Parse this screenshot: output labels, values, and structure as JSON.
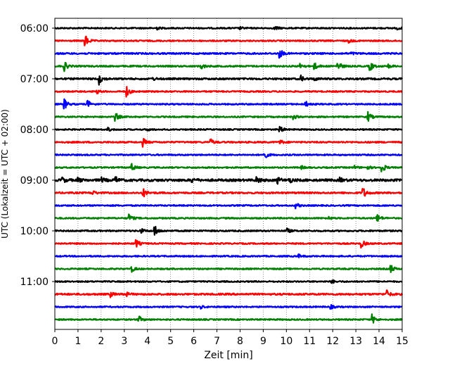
{
  "chart_data": {
    "type": "line",
    "title": "",
    "xlabel": "Zeit  [min]",
    "ylabel": "UTC (Lokalzeit = UTC + 02:00)",
    "xlim": [
      0,
      15
    ],
    "x_ticks": [
      0,
      1,
      2,
      3,
      4,
      5,
      6,
      7,
      8,
      9,
      10,
      11,
      12,
      13,
      14,
      15
    ],
    "x_tick_labels": [
      "0",
      "1",
      "2",
      "3",
      "4",
      "5",
      "6",
      "7",
      "8",
      "9",
      "10",
      "11",
      "12",
      "13",
      "14",
      "15"
    ],
    "vertical_grid": true,
    "y_tick_labels": [
      "06:00",
      "07:00",
      "08:00",
      "09:00",
      "10:00",
      "11:00"
    ],
    "trace_interval_minutes": 15,
    "trace_colors": [
      "#000000",
      "#ff0000",
      "#0000ff",
      "#008000"
    ],
    "series": [
      {
        "start": "06:00",
        "color": "#000000",
        "noise": 1.0,
        "events": [
          {
            "t": 4.4,
            "a": 2.0
          },
          {
            "t": 8.0,
            "a": 1.5
          },
          {
            "t": 9.5,
            "a": 3.0
          },
          {
            "t": 14.8,
            "a": 1.8
          }
        ]
      },
      {
        "start": "06:15",
        "color": "#ff0000",
        "noise": 1.0,
        "events": [
          {
            "t": 1.3,
            "a": 9.0
          },
          {
            "t": 12.7,
            "a": 2.5
          }
        ]
      },
      {
        "start": "06:30",
        "color": "#0000ff",
        "noise": 1.2,
        "events": [
          {
            "t": 9.7,
            "a": 7.0
          },
          {
            "t": 12.8,
            "a": 1.8
          }
        ]
      },
      {
        "start": "06:45",
        "color": "#008000",
        "noise": 1.1,
        "events": [
          {
            "t": 0.4,
            "a": 7.0
          },
          {
            "t": 6.3,
            "a": 5.0
          },
          {
            "t": 10.6,
            "a": 4.0
          },
          {
            "t": 11.2,
            "a": 5.0
          },
          {
            "t": 12.2,
            "a": 9.0
          },
          {
            "t": 13.6,
            "a": 7.0
          },
          {
            "t": 14.4,
            "a": 3.0
          }
        ]
      },
      {
        "start": "07:00",
        "color": "#000000",
        "noise": 1.3,
        "events": [
          {
            "t": 1.9,
            "a": 8.0
          },
          {
            "t": 4.2,
            "a": 2.5
          },
          {
            "t": 10.6,
            "a": 5.0
          },
          {
            "t": 11.2,
            "a": 2.0
          }
        ]
      },
      {
        "start": "07:15",
        "color": "#ff0000",
        "noise": 1.0,
        "events": [
          {
            "t": 1.8,
            "a": 3.0
          },
          {
            "t": 3.1,
            "a": 7.0
          }
        ]
      },
      {
        "start": "07:30",
        "color": "#0000ff",
        "noise": 1.0,
        "events": [
          {
            "t": 0.4,
            "a": 8.0
          },
          {
            "t": 1.4,
            "a": 6.0
          },
          {
            "t": 10.8,
            "a": 5.0
          }
        ]
      },
      {
        "start": "07:45",
        "color": "#008000",
        "noise": 1.0,
        "events": [
          {
            "t": 2.6,
            "a": 7.0
          },
          {
            "t": 10.3,
            "a": 3.0
          },
          {
            "t": 13.5,
            "a": 8.0
          }
        ]
      },
      {
        "start": "08:00",
        "color": "#000000",
        "noise": 1.0,
        "events": [
          {
            "t": 2.3,
            "a": 2.5
          },
          {
            "t": 4.0,
            "a": 2.0
          },
          {
            "t": 9.7,
            "a": 5.0
          }
        ]
      },
      {
        "start": "08:15",
        "color": "#ff0000",
        "noise": 1.1,
        "events": [
          {
            "t": 3.8,
            "a": 6.0
          },
          {
            "t": 6.7,
            "a": 5.0
          },
          {
            "t": 9.7,
            "a": 4.0
          }
        ]
      },
      {
        "start": "08:30",
        "color": "#0000ff",
        "noise": 1.0,
        "events": [
          {
            "t": 9.0,
            "a": 8.0
          }
        ]
      },
      {
        "start": "08:45",
        "color": "#008000",
        "noise": 1.0,
        "events": [
          {
            "t": 3.3,
            "a": 6.0
          },
          {
            "t": 10.6,
            "a": 3.0
          },
          {
            "t": 12.9,
            "a": 3.0
          },
          {
            "t": 13.5,
            "a": 2.5
          },
          {
            "t": 14.1,
            "a": 8.0
          }
        ]
      },
      {
        "start": "09:00",
        "color": "#000000",
        "noise": 1.8,
        "events": [
          {
            "t": 0.3,
            "a": 4.0
          },
          {
            "t": 1.0,
            "a": 3.0
          },
          {
            "t": 2.0,
            "a": 3.5
          },
          {
            "t": 2.6,
            "a": 5.0
          },
          {
            "t": 5.9,
            "a": 3.5
          },
          {
            "t": 8.7,
            "a": 6.0
          },
          {
            "t": 9.6,
            "a": 5.0
          },
          {
            "t": 10.1,
            "a": 4.0
          },
          {
            "t": 12.3,
            "a": 3.0
          }
        ]
      },
      {
        "start": "09:15",
        "color": "#ff0000",
        "noise": 1.2,
        "events": [
          {
            "t": 1.6,
            "a": 3.5
          },
          {
            "t": 3.8,
            "a": 7.0
          },
          {
            "t": 13.3,
            "a": 8.0
          }
        ]
      },
      {
        "start": "09:30",
        "color": "#0000ff",
        "noise": 1.0,
        "events": [
          {
            "t": 10.4,
            "a": 4.0
          }
        ]
      },
      {
        "start": "09:45",
        "color": "#008000",
        "noise": 1.0,
        "events": [
          {
            "t": 3.2,
            "a": 6.0
          },
          {
            "t": 11.8,
            "a": 2.5
          },
          {
            "t": 13.9,
            "a": 7.0
          }
        ]
      },
      {
        "start": "10:00",
        "color": "#000000",
        "noise": 1.1,
        "events": [
          {
            "t": 3.7,
            "a": 3.5
          },
          {
            "t": 4.3,
            "a": 8.0
          },
          {
            "t": 10.0,
            "a": 4.0
          }
        ]
      },
      {
        "start": "10:15",
        "color": "#ff0000",
        "noise": 1.0,
        "events": [
          {
            "t": 3.5,
            "a": 6.0
          },
          {
            "t": 13.2,
            "a": 8.0
          }
        ]
      },
      {
        "start": "10:30",
        "color": "#0000ff",
        "noise": 1.0,
        "events": [
          {
            "t": 10.5,
            "a": 3.0
          }
        ]
      },
      {
        "start": "10:45",
        "color": "#008000",
        "noise": 1.0,
        "events": [
          {
            "t": 3.3,
            "a": 5.0
          },
          {
            "t": 14.5,
            "a": 6.0
          }
        ]
      },
      {
        "start": "11:00",
        "color": "#000000",
        "noise": 1.0,
        "events": [
          {
            "t": 11.9,
            "a": 4.0
          }
        ]
      },
      {
        "start": "11:15",
        "color": "#ff0000",
        "noise": 1.3,
        "events": [
          {
            "t": 2.4,
            "a": 3.5
          },
          {
            "t": 3.0,
            "a": 5.0
          },
          {
            "t": 14.3,
            "a": 7.0
          }
        ]
      },
      {
        "start": "11:30",
        "color": "#0000ff",
        "noise": 1.0,
        "events": [
          {
            "t": 6.3,
            "a": 2.0
          },
          {
            "t": 11.9,
            "a": 3.0
          }
        ]
      },
      {
        "start": "11:45",
        "color": "#008000",
        "noise": 1.0,
        "events": [
          {
            "t": 3.6,
            "a": 6.0
          },
          {
            "t": 13.7,
            "a": 7.0
          }
        ]
      }
    ]
  }
}
